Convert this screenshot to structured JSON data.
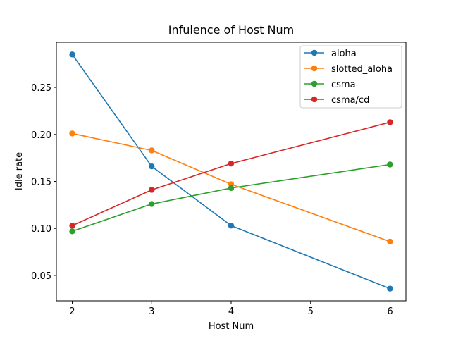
{
  "chart_data": {
    "type": "line",
    "title": "Infulence of Host Num",
    "xlabel": "Host Num",
    "ylabel": "Idle rate",
    "x": [
      2,
      3,
      4,
      6
    ],
    "xticks": [
      2,
      3,
      4,
      5,
      6
    ],
    "yticks": [
      0.05,
      0.1,
      0.15,
      0.2,
      0.25
    ],
    "ytick_labels": [
      "0.05",
      "0.10",
      "0.15",
      "0.20",
      "0.25"
    ],
    "xlim": [
      1.8,
      6.2
    ],
    "ylim": [
      0.023,
      0.298
    ],
    "grid": false,
    "legend_position": "top-right",
    "series": [
      {
        "name": "aloha",
        "color": "#1f77b4",
        "values": [
          0.285,
          0.166,
          0.103,
          0.036
        ]
      },
      {
        "name": "slotted_aloha",
        "color": "#ff7f0e",
        "values": [
          0.201,
          0.183,
          0.147,
          0.086
        ]
      },
      {
        "name": "csma",
        "color": "#2ca02c",
        "values": [
          0.097,
          0.126,
          0.143,
          0.168
        ]
      },
      {
        "name": "csma/cd",
        "color": "#d62728",
        "values": [
          0.103,
          0.141,
          0.169,
          0.213
        ]
      }
    ]
  }
}
